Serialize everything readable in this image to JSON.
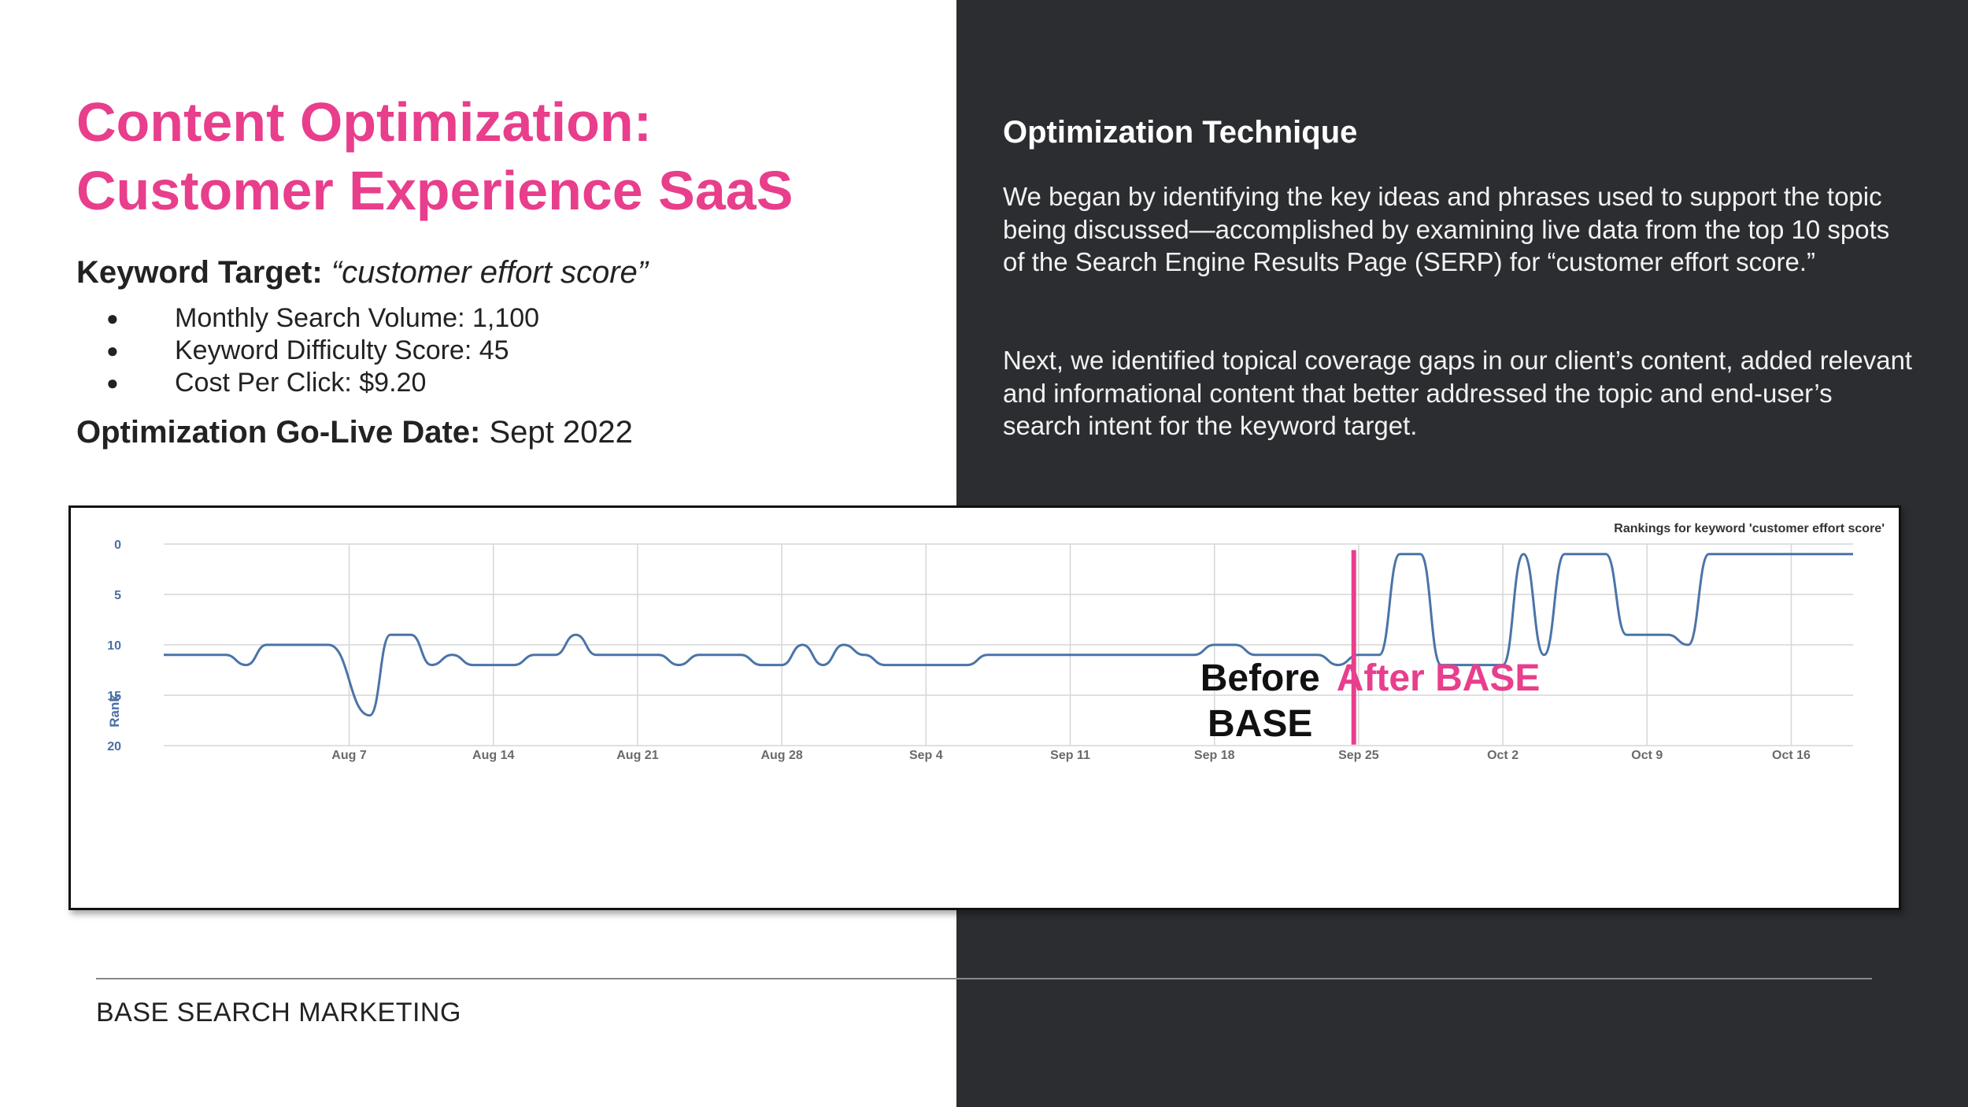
{
  "slide": {
    "title_line1": "Content Optimization:",
    "title_line2": "Customer Experience SaaS",
    "keyword_label": "Keyword Target:",
    "keyword_value": "“customer effort score”",
    "bullet_glyph": "●",
    "bullets": [
      "Monthly Search Volume: 1,100",
      "Keyword Difficulty Score: 45",
      "Cost Per Click: $9.20"
    ],
    "golive_label": "Optimization Go-Live Date:",
    "golive_value": "Sept 2022",
    "technique_heading": "Optimization Technique",
    "technique_p1": "We began by identifying the key ideas and phrases used to support the topic being discussed—accomplished by examining live data from the top 10 spots of the Search Engine Results Page (SERP) for “customer effort score.”",
    "technique_p2": "Next, we identified topical coverage gaps in our client’s content, added relevant and informational content that better addressed the topic and end-user’s search intent for the keyword target.",
    "footer": "BASE SEARCH MARKETING"
  },
  "colors": {
    "accent": "#e83e8c",
    "dark_panel": "#2c2d30",
    "series_line": "#4a74a8",
    "axis_text": "#4a6fa5",
    "grid": "#d6d6d6"
  },
  "chart_data": {
    "type": "line",
    "title": "Rankings for keyword 'customer effort score'",
    "ylabel": "Rank",
    "xlabel": "",
    "ylim": [
      0,
      20
    ],
    "y_inverted": true,
    "y_ticks": [
      0,
      5,
      10,
      15,
      20
    ],
    "x_range": [
      "2022-07-29",
      "2022-10-19"
    ],
    "x_ticks": [
      {
        "date": "2022-08-07",
        "label": "Aug 7"
      },
      {
        "date": "2022-08-14",
        "label": "Aug 14"
      },
      {
        "date": "2022-08-21",
        "label": "Aug 21"
      },
      {
        "date": "2022-08-28",
        "label": "Aug 28"
      },
      {
        "date": "2022-09-04",
        "label": "Sep 4"
      },
      {
        "date": "2022-09-11",
        "label": "Sep 11"
      },
      {
        "date": "2022-09-18",
        "label": "Sep 18"
      },
      {
        "date": "2022-09-25",
        "label": "Sep 25"
      },
      {
        "date": "2022-10-02",
        "label": "Oct 2"
      },
      {
        "date": "2022-10-09",
        "label": "Oct 9"
      },
      {
        "date": "2022-10-16",
        "label": "Oct 16"
      }
    ],
    "grid": true,
    "legend": "none",
    "series": [
      {
        "values": [
          {
            "date": "2022-07-29",
            "rank": 11
          },
          {
            "date": "2022-08-01",
            "rank": 11
          },
          {
            "date": "2022-08-02",
            "rank": 12
          },
          {
            "date": "2022-08-03",
            "rank": 10
          },
          {
            "date": "2022-08-05",
            "rank": 10
          },
          {
            "date": "2022-08-06",
            "rank": 10
          },
          {
            "date": "2022-08-08",
            "rank": 17
          },
          {
            "date": "2022-08-09",
            "rank": 9
          },
          {
            "date": "2022-08-10",
            "rank": 9
          },
          {
            "date": "2022-08-11",
            "rank": 12
          },
          {
            "date": "2022-08-12",
            "rank": 11
          },
          {
            "date": "2022-08-13",
            "rank": 12
          },
          {
            "date": "2022-08-15",
            "rank": 12
          },
          {
            "date": "2022-08-16",
            "rank": 11
          },
          {
            "date": "2022-08-17",
            "rank": 11
          },
          {
            "date": "2022-08-18",
            "rank": 9
          },
          {
            "date": "2022-08-19",
            "rank": 11
          },
          {
            "date": "2022-08-22",
            "rank": 11
          },
          {
            "date": "2022-08-23",
            "rank": 12
          },
          {
            "date": "2022-08-24",
            "rank": 11
          },
          {
            "date": "2022-08-26",
            "rank": 11
          },
          {
            "date": "2022-08-27",
            "rank": 12
          },
          {
            "date": "2022-08-28",
            "rank": 12
          },
          {
            "date": "2022-08-29",
            "rank": 10
          },
          {
            "date": "2022-08-30",
            "rank": 12
          },
          {
            "date": "2022-08-31",
            "rank": 10
          },
          {
            "date": "2022-09-01",
            "rank": 11
          },
          {
            "date": "2022-09-02",
            "rank": 12
          },
          {
            "date": "2022-09-05",
            "rank": 12
          },
          {
            "date": "2022-09-06",
            "rank": 12
          },
          {
            "date": "2022-09-07",
            "rank": 11
          },
          {
            "date": "2022-09-17",
            "rank": 11
          },
          {
            "date": "2022-09-18",
            "rank": 10
          },
          {
            "date": "2022-09-19",
            "rank": 10
          },
          {
            "date": "2022-09-20",
            "rank": 11
          },
          {
            "date": "2022-09-23",
            "rank": 11
          },
          {
            "date": "2022-09-24",
            "rank": 12
          },
          {
            "date": "2022-09-25",
            "rank": 11
          },
          {
            "date": "2022-09-26",
            "rank": 11
          },
          {
            "date": "2022-09-27",
            "rank": 1
          },
          {
            "date": "2022-09-28",
            "rank": 1
          },
          {
            "date": "2022-09-29",
            "rank": 12
          },
          {
            "date": "2022-10-02",
            "rank": 12
          },
          {
            "date": "2022-10-03",
            "rank": 1
          },
          {
            "date": "2022-10-04",
            "rank": 11
          },
          {
            "date": "2022-10-05",
            "rank": 1
          },
          {
            "date": "2022-10-07",
            "rank": 1
          },
          {
            "date": "2022-10-08",
            "rank": 9
          },
          {
            "date": "2022-10-10",
            "rank": 9
          },
          {
            "date": "2022-10-11",
            "rank": 10
          },
          {
            "date": "2022-10-12",
            "rank": 1
          },
          {
            "date": "2022-10-19",
            "rank": 1
          }
        ]
      }
    ],
    "annotations": [
      {
        "date": "2022-09-24",
        "before_line1": "Before",
        "before_line2": "BASE",
        "after_label": "After BASE"
      }
    ]
  }
}
